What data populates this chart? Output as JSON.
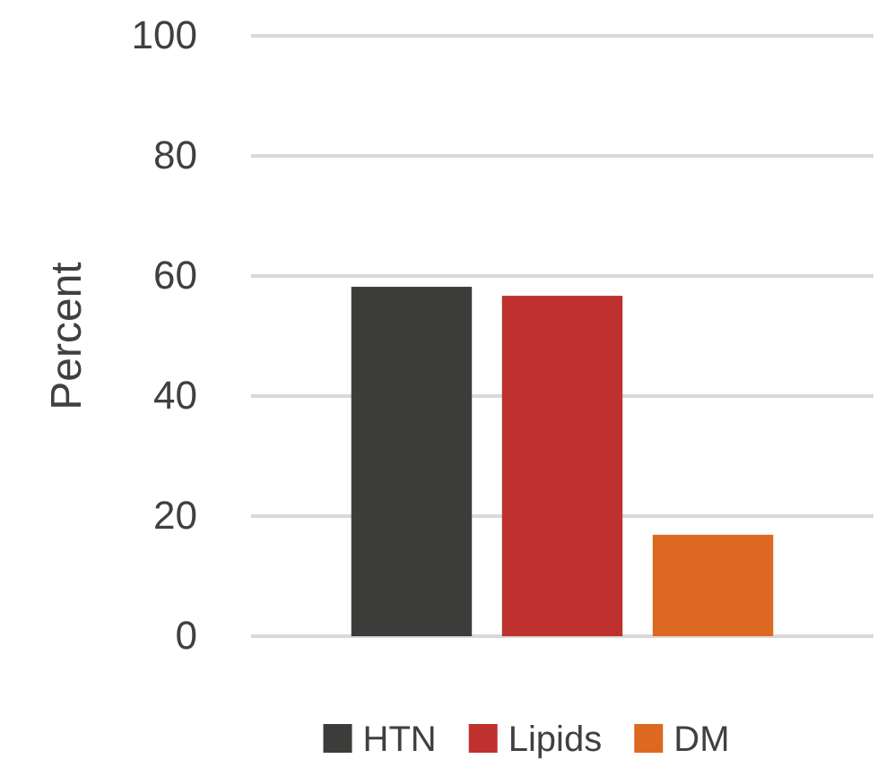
{
  "chart_data": {
    "type": "bar",
    "ylabel": "Percent",
    "categories": [
      null
    ],
    "series": [
      {
        "name": "HTN",
        "color": "#3c3c3b",
        "values": [
          58.2
        ]
      },
      {
        "name": "Lipids",
        "color": "#be312e",
        "values": [
          56.7
        ]
      },
      {
        "name": "DM",
        "color": "#dd6821",
        "values": [
          16.9
        ]
      }
    ],
    "ylim": [
      0,
      100
    ],
    "yticks": [
      0,
      20,
      40,
      60,
      80,
      100
    ],
    "grid": "y",
    "legend": "bottom"
  }
}
